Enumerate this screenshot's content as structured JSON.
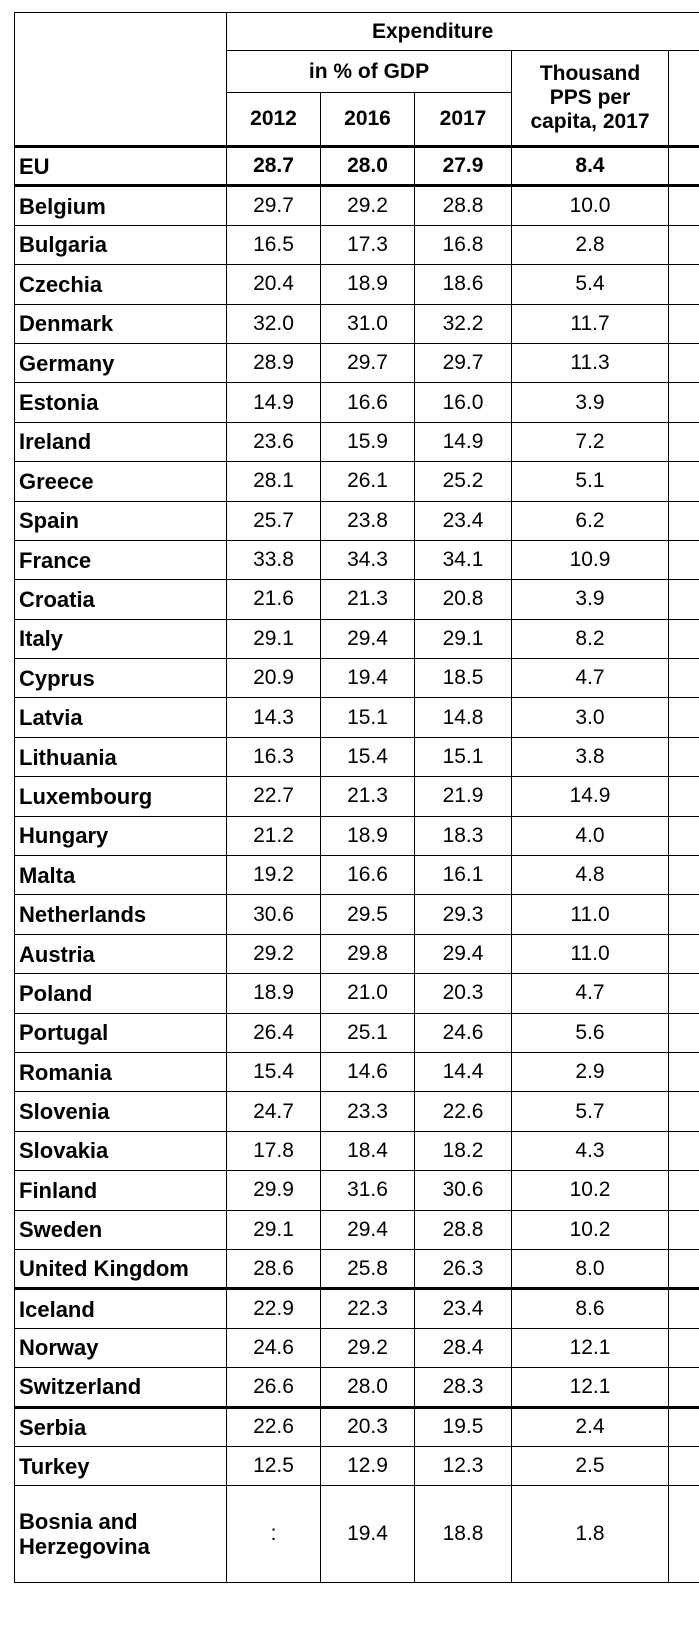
{
  "header": {
    "group": "Expenditure",
    "subgroup": "in % of GDP",
    "years": [
      "2012",
      "2016",
      "2017"
    ],
    "pps": "Thousand PPS per capita, 2017"
  },
  "sections": [
    [
      [
        "EU",
        "28.7",
        "28.0",
        "27.9",
        "8.4"
      ]
    ],
    [
      [
        "Belgium",
        "29.7",
        "29.2",
        "28.8",
        "10.0"
      ],
      [
        "Bulgaria",
        "16.5",
        "17.3",
        "16.8",
        "2.8"
      ],
      [
        "Czechia",
        "20.4",
        "18.9",
        "18.6",
        "5.4"
      ],
      [
        "Denmark",
        "32.0",
        "31.0",
        "32.2",
        "11.7"
      ],
      [
        "Germany",
        "28.9",
        "29.7",
        "29.7",
        "11.3"
      ],
      [
        "Estonia",
        "14.9",
        "16.6",
        "16.0",
        "3.9"
      ],
      [
        "Ireland",
        "23.6",
        "15.9",
        "14.9",
        "7.2"
      ],
      [
        "Greece",
        "28.1",
        "26.1",
        "25.2",
        "5.1"
      ],
      [
        "Spain",
        "25.7",
        "23.8",
        "23.4",
        "6.2"
      ],
      [
        "France",
        "33.8",
        "34.3",
        "34.1",
        "10.9"
      ],
      [
        "Croatia",
        "21.6",
        "21.3",
        "20.8",
        "3.9"
      ],
      [
        "Italy",
        "29.1",
        "29.4",
        "29.1",
        "8.2"
      ],
      [
        "Cyprus",
        "20.9",
        "19.4",
        "18.5",
        "4.7"
      ],
      [
        "Latvia",
        "14.3",
        "15.1",
        "14.8",
        "3.0"
      ],
      [
        "Lithuania",
        "16.3",
        "15.4",
        "15.1",
        "3.8"
      ],
      [
        "Luxembourg",
        "22.7",
        "21.3",
        "21.9",
        "14.9"
      ],
      [
        "Hungary",
        "21.2",
        "18.9",
        "18.3",
        "4.0"
      ],
      [
        "Malta",
        "19.2",
        "16.6",
        "16.1",
        "4.8"
      ],
      [
        "Netherlands",
        "30.6",
        "29.5",
        "29.3",
        "11.0"
      ],
      [
        "Austria",
        "29.2",
        "29.8",
        "29.4",
        "11.0"
      ],
      [
        "Poland",
        "18.9",
        "21.0",
        "20.3",
        "4.7"
      ],
      [
        "Portugal",
        "26.4",
        "25.1",
        "24.6",
        "5.6"
      ],
      [
        "Romania",
        "15.4",
        "14.6",
        "14.4",
        "2.9"
      ],
      [
        "Slovenia",
        "24.7",
        "23.3",
        "22.6",
        "5.7"
      ],
      [
        "Slovakia",
        "17.8",
        "18.4",
        "18.2",
        "4.3"
      ],
      [
        "Finland",
        "29.9",
        "31.6",
        "30.6",
        "10.2"
      ],
      [
        "Sweden",
        "29.1",
        "29.4",
        "28.8",
        "10.2"
      ],
      [
        "United Kingdom",
        "28.6",
        "25.8",
        "26.3",
        "8.0"
      ]
    ],
    [
      [
        "Iceland",
        "22.9",
        "22.3",
        "23.4",
        "8.6"
      ],
      [
        "Norway",
        "24.6",
        "29.2",
        "28.4",
        "12.1"
      ],
      [
        "Switzerland",
        "26.6",
        "28.0",
        "28.3",
        "12.1"
      ]
    ],
    [
      [
        "Serbia",
        "22.6",
        "20.3",
        "19.5",
        "2.4"
      ],
      [
        "Turkey",
        "12.5",
        "12.9",
        "12.3",
        "2.5"
      ],
      [
        "Bosnia and Herzegovina",
        ":",
        "19.4",
        "18.8",
        "1.8"
      ]
    ]
  ]
}
